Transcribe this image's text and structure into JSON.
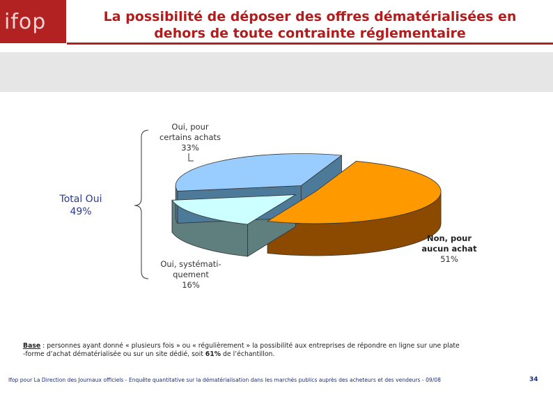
{
  "header": {
    "logo_text": "ifop",
    "title_line1": "La possibilité de déposer des offres dématérialisées en",
    "title_line2": "dehors de toute contrainte réglementaire"
  },
  "colors": {
    "brand": "#b22222",
    "title": "#b21c1c",
    "band": "#e6e6e6",
    "footer": "#1a2d7a"
  },
  "chart_data": {
    "type": "pie",
    "title": "",
    "style": "3d-exploded",
    "slices": [
      {
        "label_lines": [
          "Non, pour",
          "aucun achat"
        ],
        "value_text": "51%",
        "value": 51,
        "color": "#ff9900",
        "side_color": "#8b4a00",
        "bold": true
      },
      {
        "label_lines": [
          "Oui, systémati-",
          "quement"
        ],
        "value_text": "16%",
        "value": 16,
        "color": "#ccffff",
        "side_color": "#5f7f7f",
        "bold": false
      },
      {
        "label_lines": [
          "Oui, pour",
          "certains achats"
        ],
        "value_text": "33%",
        "value": 33,
        "color": "#99ccff",
        "side_color": "#4d7a99",
        "bold": false
      }
    ],
    "group_annotation": {
      "label": "Total Oui",
      "value_text": "49%",
      "value": 49,
      "color": "#2b3a8f"
    }
  },
  "base_note": {
    "label": "Base",
    "text_line1": " : personnes ayant donné « plusieurs fois » ou « régulièrement » la possibilité aux entreprises de répondre en ligne sur une plate",
    "text_line2_a": "-forme d’achat dématérialisée ou sur un site dédié, soit ",
    "text_line2_bold": "61%",
    "text_line2_b": " de l’échantillon."
  },
  "footer": {
    "text": "Ifop pour La Direction des Journaux officiels - Enquête quantitative sur la dématérialisation dans les marchés publics auprès des acheteurs et des vendeurs - 09/08",
    "page": "34"
  }
}
